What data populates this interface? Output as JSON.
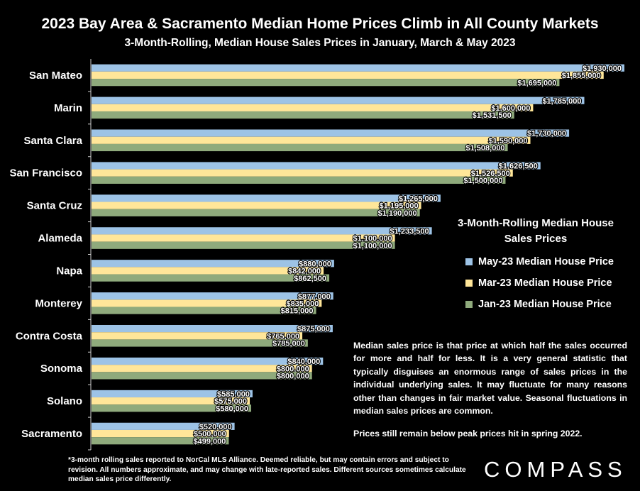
{
  "title": "2023 Bay Area & Sacramento Median Home Prices Climb in All County Markets",
  "subtitle": "3-Month-Rolling, Median House Sales Prices in January, March & May 2023",
  "chart_data": {
    "type": "bar",
    "orientation": "horizontal",
    "categories": [
      "San Mateo",
      "Marin",
      "Santa Clara",
      "San Francisco",
      "Santa Cruz",
      "Alameda",
      "Napa",
      "Monterey",
      "Contra Costa",
      "Sonoma",
      "Solano",
      "Sacramento"
    ],
    "series": [
      {
        "name": "May-23 Median House Price",
        "color": "#9dc3e6",
        "values": [
          1930000,
          1785000,
          1730000,
          1626500,
          1265000,
          1233500,
          880000,
          877000,
          875000,
          840000,
          585000,
          520000
        ],
        "labels": [
          "$1,930,000",
          "$1,785,000",
          "$1,730,000",
          "$1,626,500",
          "$1,265,000",
          "$1,233,500",
          "$880,000",
          "$877,000",
          "$875,000",
          "$840,000",
          "$585,000",
          "$520,000"
        ]
      },
      {
        "name": "Mar-23 Median House Price",
        "color": "#ffe699",
        "values": [
          1855000,
          1600000,
          1590000,
          1526500,
          1195000,
          1100000,
          842000,
          835000,
          765000,
          800000,
          575000,
          500000
        ],
        "labels": [
          "$1,855,000",
          "$1,600,000",
          "$1,590,000",
          "$1,526,500",
          "$1,195,000",
          "$1,100,000",
          "$842,000",
          "$835,000",
          "$765,000",
          "$800,000",
          "$575,000",
          "$500,000"
        ]
      },
      {
        "name": "Jan-23 Median House Price",
        "color": "#8faa7c",
        "values": [
          1695000,
          1531500,
          1508000,
          1500000,
          1190000,
          1100000,
          862500,
          815000,
          785000,
          800000,
          580000,
          499000
        ],
        "labels": [
          "$1,695,000",
          "$1,531,500",
          "$1,508,000",
          "$1,500,000",
          "$1,190,000",
          "$1,100,000",
          "$862,500",
          "$815,000",
          "$785,000",
          "$800,000",
          "$580,000",
          "$499,000"
        ]
      }
    ],
    "xlim": [
      0,
      1930000
    ],
    "grid": false,
    "legend_title": "3-Month-Rolling Median House Sales Prices",
    "legend_position": "right"
  },
  "note": "Median sales price is that price at which half the sales occurred for more and half for less. It is a very general statistic that typically disguises an enormous range of sales prices in the individual underlying sales. It may fluctuate for many reasons other than changes in fair market value. Seasonal fluctuations in median sales prices are common.",
  "note2": "Prices still remain below peak prices hit in spring 2022.",
  "footnote": "*3-month rolling sales reported to NorCal MLS Alliance. Deemed reliable, but may contain errors and subject to revision. All numbers approximate, and may change with late-reported sales.  Different sources sometimes calculate median sales price differently.",
  "logo": "COMPASS"
}
